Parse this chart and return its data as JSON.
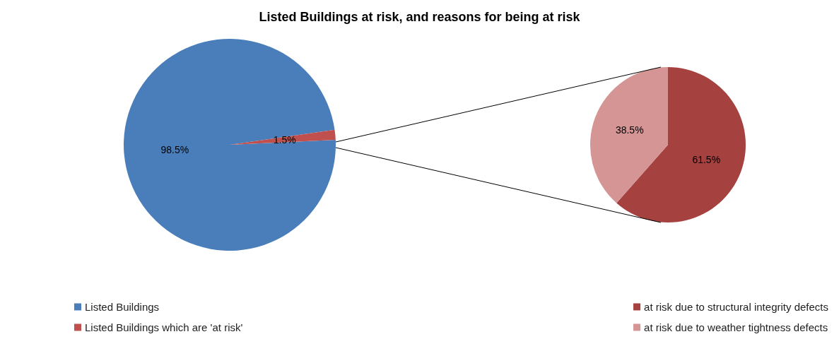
{
  "chart_data": [
    {
      "type": "pie",
      "title": "Listed Buildings at risk, and reasons for being at risk",
      "categories": [
        "Listed Buildings",
        "Listed Buildings which are 'at risk'"
      ],
      "values": [
        98.5,
        1.5
      ],
      "value_labels": [
        "98.5%",
        "1.5%"
      ],
      "colors": [
        "#4a7ebb",
        "#c0504d"
      ],
      "legend": "bottom left"
    },
    {
      "type": "pie",
      "categories": [
        "at risk due to structural integrity defects",
        "at risk due to weather tightness defects"
      ],
      "values": [
        61.5,
        38.5
      ],
      "value_labels": [
        "61.5%",
        "38.5%"
      ],
      "colors": [
        "#a5413f",
        "#d59594"
      ],
      "legend": "bottom right"
    }
  ]
}
